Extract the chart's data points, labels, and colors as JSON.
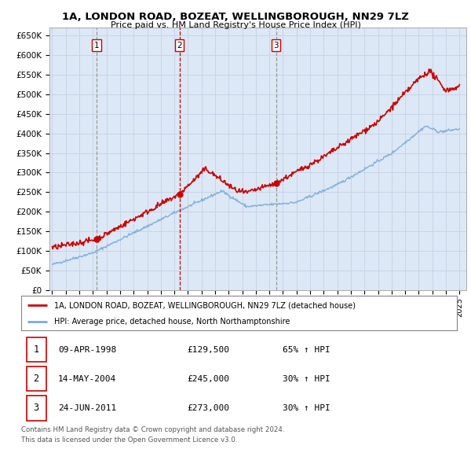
{
  "title": "1A, LONDON ROAD, BOZEAT, WELLINGBOROUGH, NN29 7LZ",
  "subtitle": "Price paid vs. HM Land Registry's House Price Index (HPI)",
  "background_color": "#ffffff",
  "grid_color": "#c8d4e8",
  "plot_bg": "#dce8f5",
  "sale_line_color": "#cc0000",
  "hpi_line_color": "#7aaad8",
  "vline_color_red": "#cc0000",
  "vline_color_gray": "#999999",
  "ylim": [
    0,
    670000
  ],
  "yticks": [
    0,
    50000,
    100000,
    150000,
    200000,
    250000,
    300000,
    350000,
    400000,
    450000,
    500000,
    550000,
    600000,
    650000
  ],
  "ytick_labels": [
    "£0",
    "£50K",
    "£100K",
    "£150K",
    "£200K",
    "£250K",
    "£300K",
    "£350K",
    "£400K",
    "£450K",
    "£500K",
    "£550K",
    "£600K",
    "£650K"
  ],
  "xmin": 1994.8,
  "xmax": 2025.5,
  "sales": [
    {
      "year": 1998.27,
      "price": 129500,
      "label": "1",
      "vline_style": "gray"
    },
    {
      "year": 2004.37,
      "price": 245000,
      "label": "2",
      "vline_style": "red"
    },
    {
      "year": 2011.48,
      "price": 273000,
      "label": "3",
      "vline_style": "gray"
    }
  ],
  "legend_line1": "1A, LONDON ROAD, BOZEAT, WELLINGBOROUGH, NN29 7LZ (detached house)",
  "legend_line2": "HPI: Average price, detached house, North Northamptonshire",
  "table_rows": [
    {
      "num": "1",
      "date": "09-APR-1998",
      "price": "£129,500",
      "hpi": "65% ↑ HPI"
    },
    {
      "num": "2",
      "date": "14-MAY-2004",
      "price": "£245,000",
      "hpi": "30% ↑ HPI"
    },
    {
      "num": "3",
      "date": "24-JUN-2011",
      "price": "£273,000",
      "hpi": "30% ↑ HPI"
    }
  ],
  "footnote1": "Contains HM Land Registry data © Crown copyright and database right 2024.",
  "footnote2": "This data is licensed under the Open Government Licence v3.0."
}
